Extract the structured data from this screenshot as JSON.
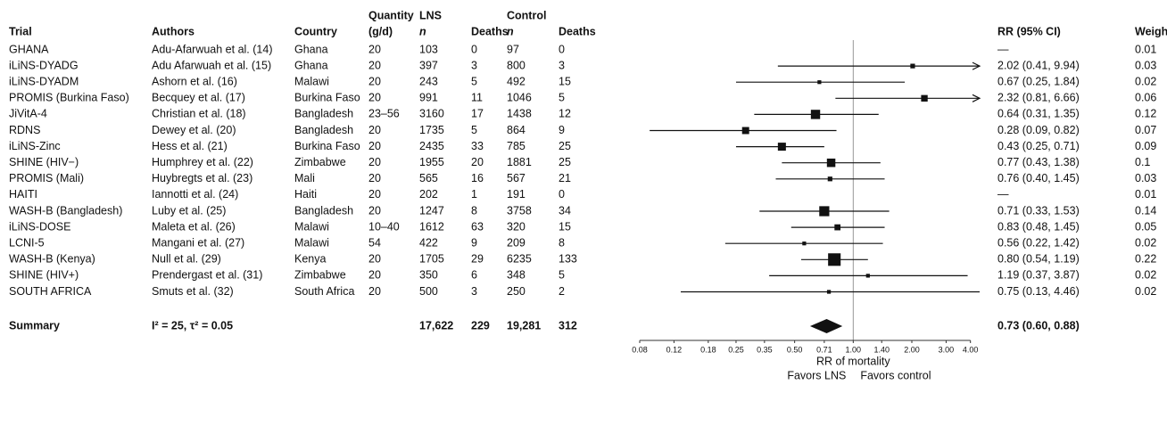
{
  "chart_data": {
    "type": "forest",
    "headers": {
      "trial": "Trial",
      "authors": "Authors",
      "country": "Country",
      "quantity_1": "Quantity",
      "quantity_2": "(g/d)",
      "lns": "LNS",
      "lns_n": "n",
      "lns_deaths": "Deaths",
      "control": "Control",
      "control_n": "n",
      "control_deaths": "Deaths",
      "rr": "RR (95% CI)",
      "weight": "Weight"
    },
    "rows": [
      {
        "trial": "GHANA",
        "authors": "Adu-Afarwuah et al. (14)",
        "country": "Ghana",
        "quantity": 20,
        "lns_n": 103,
        "lns_deaths": 0,
        "control_n": 97,
        "control_deaths": 0,
        "rr": null,
        "lo": null,
        "hi": null,
        "rr_label": "—",
        "weight": 0.01
      },
      {
        "trial": "iLiNS-DYADG",
        "authors": "Adu Afarwuah et al. (15)",
        "country": "Ghana",
        "quantity": 20,
        "lns_n": 397,
        "lns_deaths": 3,
        "control_n": 800,
        "control_deaths": 3,
        "rr": 2.02,
        "lo": 0.41,
        "hi": 9.94,
        "rr_label": "2.02 (0.41, 9.94)",
        "weight": 0.03
      },
      {
        "trial": "iLiNS-DYADM",
        "authors": "Ashorn et al. (16)",
        "country": "Malawi",
        "quantity": 20,
        "lns_n": 243,
        "lns_deaths": 5,
        "control_n": 492,
        "control_deaths": 15,
        "rr": 0.67,
        "lo": 0.25,
        "hi": 1.84,
        "rr_label": "0.67 (0.25, 1.84)",
        "weight": 0.02
      },
      {
        "trial": "PROMIS (Burkina Faso)",
        "authors": "Becquey et al. (17)",
        "country": "Burkina Faso",
        "quantity": 20,
        "lns_n": 991,
        "lns_deaths": 11,
        "control_n": 1046,
        "control_deaths": 5,
        "rr": 2.32,
        "lo": 0.81,
        "hi": 6.66,
        "rr_label": "2.32 (0.81, 6.66)",
        "weight": 0.06
      },
      {
        "trial": "JiVitA-4",
        "authors": "Christian et al. (18)",
        "country": "Bangladesh",
        "quantity": "23–56",
        "lns_n": 3160,
        "lns_deaths": 17,
        "control_n": 1438,
        "control_deaths": 12,
        "rr": 0.64,
        "lo": 0.31,
        "hi": 1.35,
        "rr_label": "0.64 (0.31, 1.35)",
        "weight": 0.12
      },
      {
        "trial": "RDNS",
        "authors": "Dewey et al. (20)",
        "country": "Bangladesh",
        "quantity": 20,
        "lns_n": 1735,
        "lns_deaths": 5,
        "control_n": 864,
        "control_deaths": 9,
        "rr": 0.28,
        "lo": 0.09,
        "hi": 0.82,
        "rr_label": "0.28 (0.09, 0.82)",
        "weight": 0.07
      },
      {
        "trial": "iLiNS-Zinc",
        "authors": "Hess et al. (21)",
        "country": "Burkina Faso",
        "quantity": 20,
        "lns_n": 2435,
        "lns_deaths": 33,
        "control_n": 785,
        "control_deaths": 25,
        "rr": 0.43,
        "lo": 0.25,
        "hi": 0.71,
        "rr_label": "0.43 (0.25, 0.71)",
        "weight": 0.09
      },
      {
        "trial": "SHINE (HIV−)",
        "authors": "Humphrey et al. (22)",
        "country": "Zimbabwe",
        "quantity": 20,
        "lns_n": 1955,
        "lns_deaths": 20,
        "control_n": 1881,
        "control_deaths": 25,
        "rr": 0.77,
        "lo": 0.43,
        "hi": 1.38,
        "rr_label": "0.77 (0.43, 1.38)",
        "weight": 0.1
      },
      {
        "trial": "PROMIS (Mali)",
        "authors": "Huybregts et al. (23)",
        "country": "Mali",
        "quantity": 20,
        "lns_n": 565,
        "lns_deaths": 16,
        "control_n": 567,
        "control_deaths": 21,
        "rr": 0.76,
        "lo": 0.4,
        "hi": 1.45,
        "rr_label": "0.76 (0.40, 1.45)",
        "weight": 0.03
      },
      {
        "trial": "HAITI",
        "authors": "Iannotti et al. (24)",
        "country": "Haiti",
        "quantity": 20,
        "lns_n": 202,
        "lns_deaths": 1,
        "control_n": 191,
        "control_deaths": 0,
        "rr": null,
        "lo": null,
        "hi": null,
        "rr_label": "—",
        "weight": 0.01
      },
      {
        "trial": "WASH-B (Bangladesh)",
        "authors": "Luby et al. (25)",
        "country": "Bangladesh",
        "quantity": 20,
        "lns_n": 1247,
        "lns_deaths": 8,
        "control_n": 3758,
        "control_deaths": 34,
        "rr": 0.71,
        "lo": 0.33,
        "hi": 1.53,
        "rr_label": "0.71 (0.33, 1.53)",
        "weight": 0.14
      },
      {
        "trial": "iLiNS-DOSE",
        "authors": "Maleta et al. (26)",
        "country": "Malawi",
        "quantity": "10–40",
        "lns_n": 1612,
        "lns_deaths": 63,
        "control_n": 320,
        "control_deaths": 15,
        "rr": 0.83,
        "lo": 0.48,
        "hi": 1.45,
        "rr_label": "0.83 (0.48, 1.45)",
        "weight": 0.05
      },
      {
        "trial": "LCNI-5",
        "authors": "Mangani et al. (27)",
        "country": "Malawi",
        "quantity": 54,
        "lns_n": 422,
        "lns_deaths": 9,
        "control_n": 209,
        "control_deaths": 8,
        "rr": 0.56,
        "lo": 0.22,
        "hi": 1.42,
        "rr_label": "0.56 (0.22, 1.42)",
        "weight": 0.02
      },
      {
        "trial": "WASH-B (Kenya)",
        "authors": "Null et al. (29)",
        "country": "Kenya",
        "quantity": 20,
        "lns_n": 1705,
        "lns_deaths": 29,
        "control_n": 6235,
        "control_deaths": 133,
        "rr": 0.8,
        "lo": 0.54,
        "hi": 1.19,
        "rr_label": "0.80 (0.54, 1.19)",
        "weight": 0.22
      },
      {
        "trial": "SHINE (HIV+)",
        "authors": "Prendergast et al. (31)",
        "country": "Zimbabwe",
        "quantity": 20,
        "lns_n": 350,
        "lns_deaths": 6,
        "control_n": 348,
        "control_deaths": 5,
        "rr": 1.19,
        "lo": 0.37,
        "hi": 3.87,
        "rr_label": "1.19 (0.37, 3.87)",
        "weight": 0.02
      },
      {
        "trial": "SOUTH AFRICA",
        "authors": "Smuts et al. (32)",
        "country": "South Africa",
        "quantity": 20,
        "lns_n": 500,
        "lns_deaths": 3,
        "control_n": 250,
        "control_deaths": 2,
        "rr": 0.75,
        "lo": 0.13,
        "hi": 4.46,
        "rr_label": "0.75 (0.13, 4.46)",
        "weight": 0.02
      }
    ],
    "summary": {
      "label": "Summary",
      "stats": "I² = 25, τ² = 0.05",
      "lns_n": "17,622",
      "lns_deaths": 229,
      "control_n": "19,281",
      "control_deaths": 312,
      "rr": 0.73,
      "lo": 0.6,
      "hi": 0.88,
      "rr_label": "0.73 (0.60, 0.88)"
    },
    "xlabel": "RR of mortality",
    "favors_left": "Favors LNS",
    "favors_right": "Favors control",
    "xscale": "log",
    "xlim": [
      0.08,
      4.46
    ],
    "xticks": [
      0.08,
      0.12,
      0.18,
      0.25,
      0.35,
      {
        "value": 0.5,
        "label": "0.50"
      },
      0.71,
      {
        "value": 1,
        "label": "1.00"
      },
      {
        "value": 1.4,
        "label": "1.40"
      },
      {
        "value": 2,
        "label": "2.00"
      },
      {
        "value": 3,
        "label": "3.00"
      },
      {
        "value": 4,
        "label": "4.00"
      }
    ],
    "reference": 1,
    "color": "#111111"
  }
}
